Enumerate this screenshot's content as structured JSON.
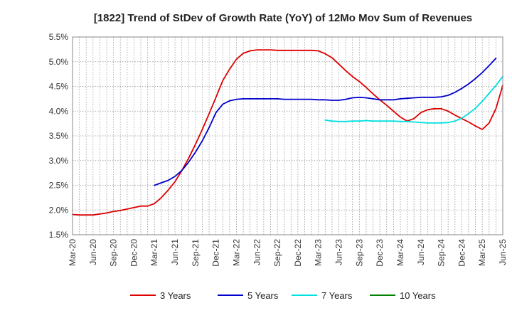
{
  "chart_data": {
    "type": "line",
    "title": "[1822]  Trend of StDev of Growth Rate (YoY) of 12Mo Mov Sum of Revenues",
    "xlabel": "",
    "ylabel": "",
    "ylim": [
      1.5,
      5.5
    ],
    "yticks": [
      "1.5%",
      "2.0%",
      "2.5%",
      "3.0%",
      "3.5%",
      "4.0%",
      "4.5%",
      "5.0%",
      "5.5%"
    ],
    "xticks": [
      "Mar-20",
      "Jun-20",
      "Sep-20",
      "Dec-20",
      "Mar-21",
      "Jun-21",
      "Sep-21",
      "Dec-21",
      "Mar-22",
      "Jun-22",
      "Sep-22",
      "Dec-22",
      "Mar-23",
      "Jun-23",
      "Sep-23",
      "Dec-23",
      "Mar-24",
      "Jun-24",
      "Sep-24",
      "Dec-24",
      "Mar-25",
      "Jun-25"
    ],
    "grid": true,
    "legend_position": "bottom",
    "series": [
      {
        "name": "3 Years",
        "color": "#dd0000",
        "start_index": 0,
        "values": [
          1.91,
          1.9,
          1.9,
          1.9,
          1.92,
          1.94,
          1.97,
          1.99,
          2.02,
          2.05,
          2.08,
          2.08,
          2.13,
          2.25,
          2.4,
          2.57,
          2.8,
          3.05,
          3.33,
          3.63,
          3.95,
          4.28,
          4.62,
          4.85,
          5.05,
          5.17,
          5.22,
          5.24,
          5.24,
          5.24,
          5.23,
          5.23,
          5.23,
          5.23,
          5.23,
          5.23,
          5.22,
          5.16,
          5.08,
          4.95,
          4.82,
          4.7,
          4.6,
          4.48,
          4.35,
          4.23,
          4.12,
          4.0,
          3.88,
          3.8,
          3.85,
          3.97,
          4.03,
          4.05,
          4.05,
          4.0,
          3.92,
          3.85,
          3.78,
          3.7,
          3.63,
          3.76,
          4.05,
          4.52
        ]
      },
      {
        "name": "5 Years",
        "color": "#0000cc",
        "start_index": 12,
        "values": [
          2.5,
          2.55,
          2.6,
          2.68,
          2.8,
          2.97,
          3.17,
          3.4,
          3.67,
          3.97,
          4.14,
          4.21,
          4.24,
          4.25,
          4.25,
          4.25,
          4.25,
          4.25,
          4.25,
          4.24,
          4.24,
          4.24,
          4.24,
          4.24,
          4.23,
          4.23,
          4.22,
          4.22,
          4.24,
          4.27,
          4.28,
          4.27,
          4.25,
          4.23,
          4.23,
          4.23,
          4.25,
          4.26,
          4.27,
          4.28,
          4.28,
          4.28,
          4.29,
          4.32,
          4.38,
          4.46,
          4.55,
          4.66,
          4.78,
          4.92,
          5.07
        ]
      },
      {
        "name": "7 Years",
        "color": "#00e0e0",
        "start_index": 37,
        "values": [
          3.82,
          3.8,
          3.79,
          3.79,
          3.8,
          3.8,
          3.81,
          3.8,
          3.8,
          3.8,
          3.8,
          3.79,
          3.79,
          3.78,
          3.77,
          3.76,
          3.76,
          3.76,
          3.77,
          3.8,
          3.86,
          3.95,
          4.06,
          4.2,
          4.36,
          4.52,
          4.7
        ]
      },
      {
        "name": "10 Years",
        "color": "#008000",
        "start_index": 0,
        "values": []
      }
    ]
  }
}
